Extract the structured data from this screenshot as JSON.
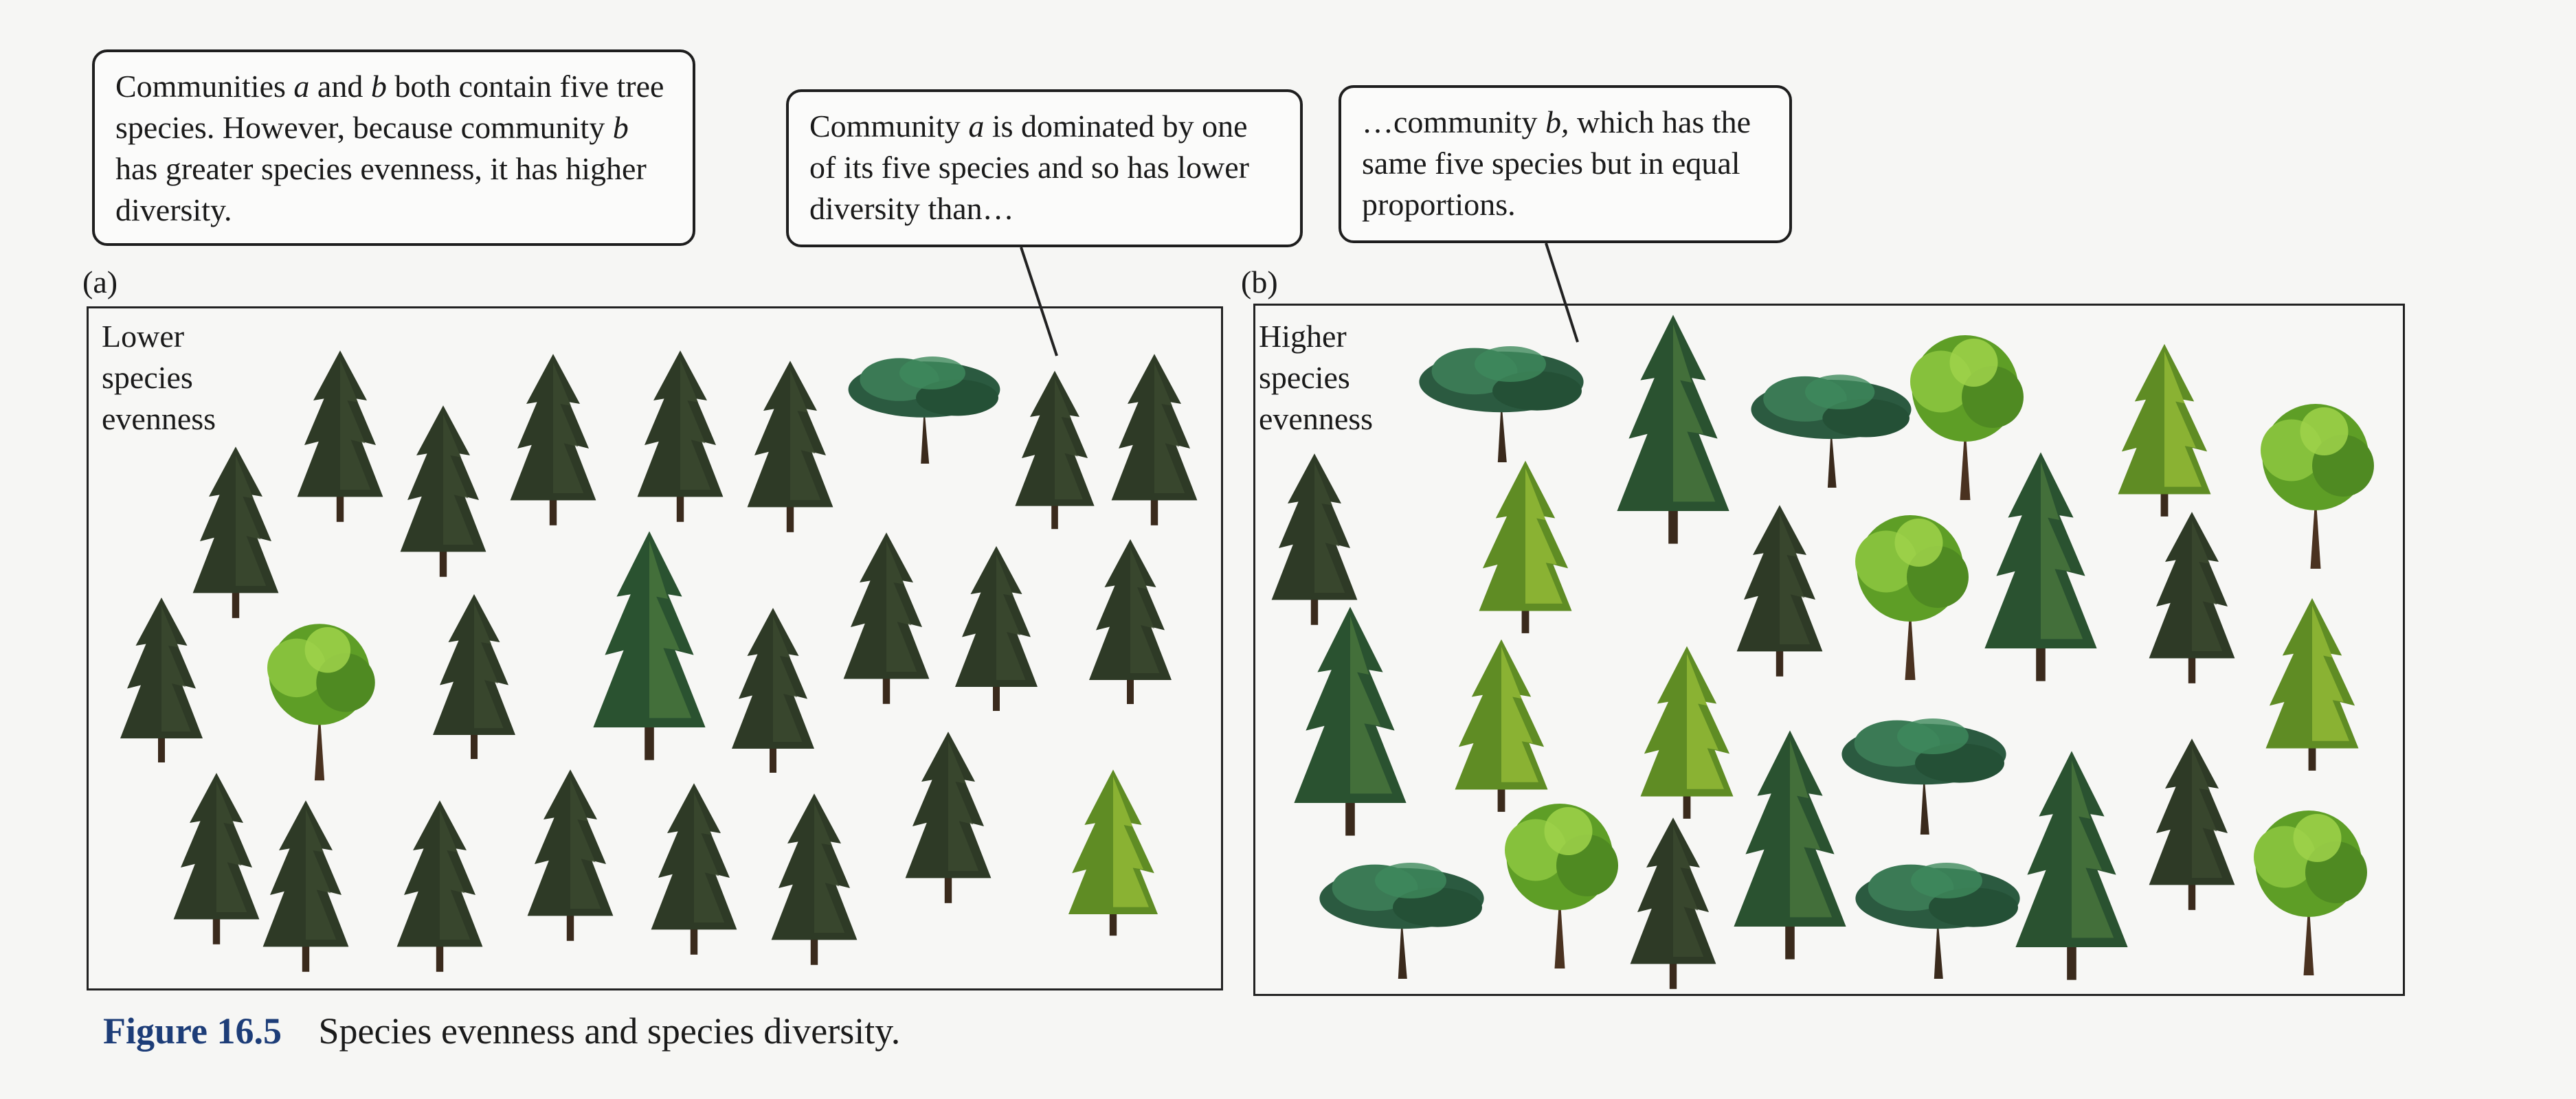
{
  "callouts": {
    "left": {
      "p1": "Communities ",
      "a": "a",
      "p2": " and ",
      "b": "b",
      "p3": " both contain five tree species.  However, because community ",
      "b2": "b",
      "p4": " has greater species evenness, it has higher diversity."
    },
    "middle": {
      "p1": "Community ",
      "a": "a",
      "p2": " is dominated by one of its five species and so has lower diversity than…"
    },
    "right": {
      "p1": "…community ",
      "b": "b,",
      "p2": " which has the same five species but in equal proportions."
    }
  },
  "panel_a": {
    "tag": "(a)",
    "label_lines": [
      "Lower",
      "species",
      "evenness"
    ]
  },
  "panel_b": {
    "tag": "(b)",
    "label_lines": [
      "Higher",
      "species",
      "evenness"
    ]
  },
  "caption": {
    "number": "Figure 16.5",
    "text": "Species evenness and species diversity."
  },
  "species": [
    {
      "key": "dark-spruce",
      "color": "#2e3a26"
    },
    {
      "key": "blue-spruce",
      "color": "#2f5a36"
    },
    {
      "key": "broad-oak",
      "color": "#2c5a40"
    },
    {
      "key": "light-maple",
      "color": "#6fae2c"
    },
    {
      "key": "yellow-fir",
      "color": "#6c9a2a"
    }
  ]
}
